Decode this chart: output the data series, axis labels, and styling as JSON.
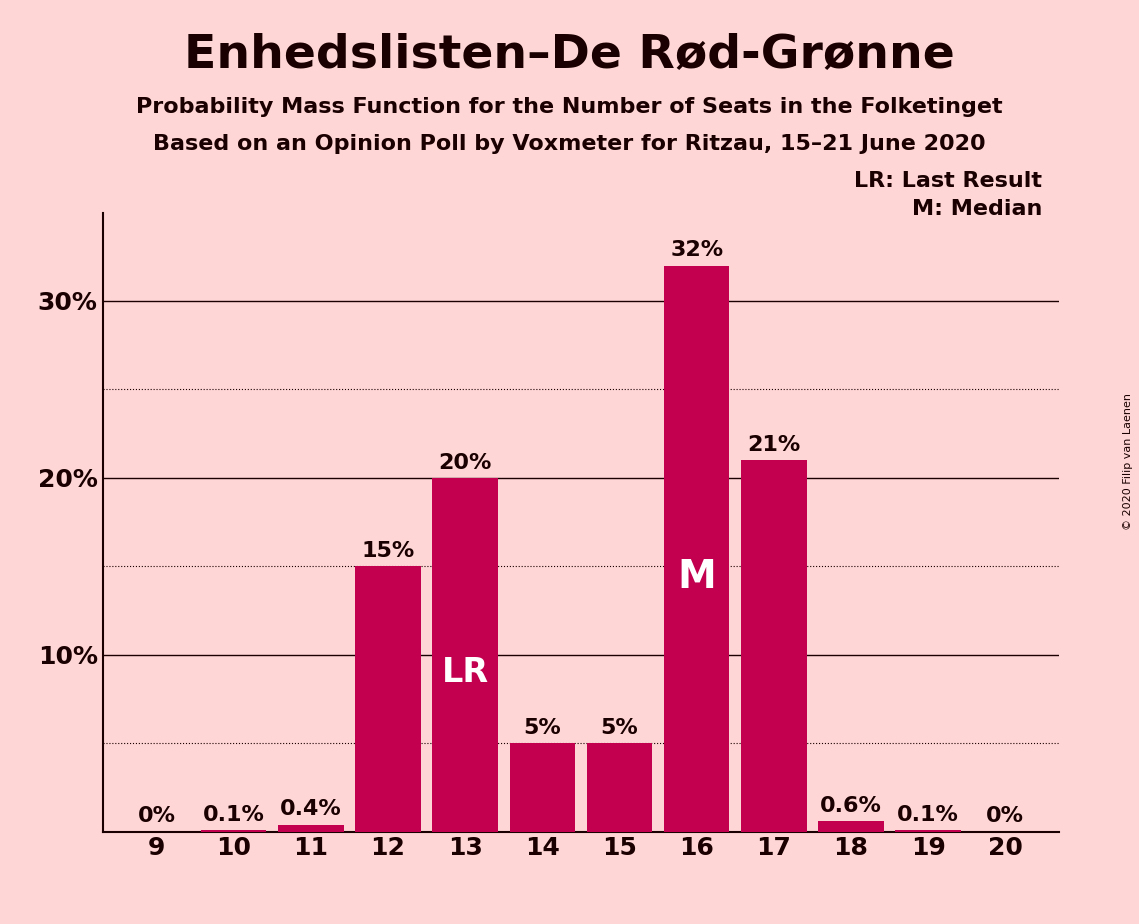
{
  "title": "Enhedslisten–De Rød-Grønne",
  "subtitle1": "Probability Mass Function for the Number of Seats in the Folketinget",
  "subtitle2": "Based on an Opinion Poll by Voxmeter for Ritzau, 15–21 June 2020",
  "copyright": "© 2020 Filip van Laenen",
  "seats": [
    9,
    10,
    11,
    12,
    13,
    14,
    15,
    16,
    17,
    18,
    19,
    20
  ],
  "probabilities": [
    0.0,
    0.1,
    0.4,
    15.0,
    20.0,
    5.0,
    5.0,
    32.0,
    21.0,
    0.6,
    0.1,
    0.0
  ],
  "bar_color": "#C2004F",
  "background_color": "#FFD6D6",
  "text_color": "#1a0000",
  "lr_seat": 13,
  "median_seat": 16,
  "ylim": [
    0,
    35
  ],
  "yticks": [
    10,
    20,
    30
  ],
  "ytick_labels": [
    "10%",
    "20%",
    "30%"
  ],
  "solid_grid": [
    10,
    20,
    30
  ],
  "dotted_grid": [
    5,
    15,
    25
  ],
  "legend_text": [
    "LR: Last Result",
    "M: Median"
  ],
  "bar_label_fontsize": 16,
  "title_fontsize": 34,
  "subtitle_fontsize": 16,
  "axis_label_fontsize": 18,
  "legend_fontsize": 16
}
